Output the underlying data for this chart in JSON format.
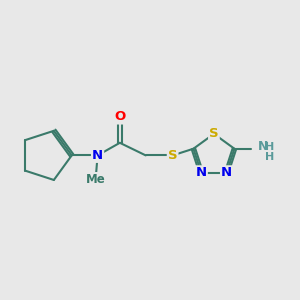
{
  "bg_color": "#e8e8e8",
  "bond_color": "#3a7a6a",
  "bond_width": 1.5,
  "atom_colors": {
    "O": "#ff0000",
    "N": "#0000ee",
    "S": "#ccaa00",
    "C": "#3a7a6a",
    "H": "#5a9a9a"
  },
  "font_size": 9.5
}
